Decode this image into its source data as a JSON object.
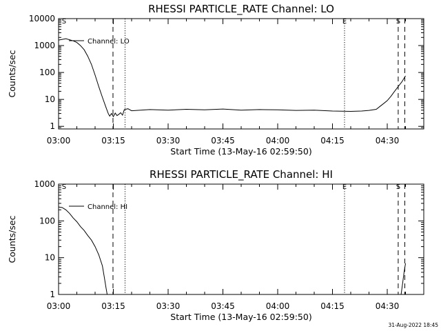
{
  "chart_data": [
    {
      "type": "line",
      "title": "RHESSI PARTICLE_RATE Channel: LO",
      "xlabel": "Start Time (13-May-16 02:59:50)",
      "ylabel": "Counts/sec",
      "x_ticks": [
        "03:00",
        "03:15",
        "03:30",
        "03:45",
        "04:00",
        "04:15",
        "04:30"
      ],
      "y_ticks": [
        "1",
        "10",
        "100",
        "1000",
        "10000"
      ],
      "y_scale": "log",
      "ylim": [
        0.8,
        10000
      ],
      "xlim_minutes": [
        0,
        100
      ],
      "legend": "Channel: LO",
      "series": [
        {
          "name": "Channel: LO",
          "x_minutes": [
            0,
            2,
            4,
            5,
            6,
            7,
            8,
            9,
            10,
            11,
            12,
            13,
            13.6,
            14,
            14.5,
            15,
            15.5,
            16,
            16.5,
            17,
            17.5,
            18,
            19,
            20,
            25,
            30,
            35,
            40,
            45,
            50,
            55,
            60,
            65,
            70,
            75,
            80,
            83,
            85,
            87,
            88,
            89,
            90,
            91,
            92,
            93,
            94,
            95
          ],
          "y_counts": [
            1600,
            1800,
            1500,
            1300,
            1000,
            700,
            400,
            200,
            80,
            30,
            12,
            5,
            3,
            2.4,
            3,
            2.3,
            3.1,
            2.5,
            2.8,
            3.2,
            2.6,
            4.2,
            4.5,
            3.8,
            4.2,
            4.0,
            4.3,
            4.1,
            4.4,
            4.0,
            4.2,
            4.1,
            3.9,
            4.0,
            3.7,
            3.6,
            3.7,
            3.9,
            4.3,
            5.5,
            7,
            9,
            13,
            20,
            30,
            45,
            75
          ]
        }
      ],
      "markers": [
        {
          "label": "S",
          "x_minutes": 1.5,
          "style": "none"
        },
        {
          "label": "",
          "x_minutes": 14.9,
          "style": "dashed"
        },
        {
          "label": "",
          "x_minutes": 18.2,
          "style": "dotted"
        },
        {
          "label": "E",
          "x_minutes": 78.3,
          "style": "dotted"
        },
        {
          "label": "S",
          "x_minutes": 93,
          "style": "dashed"
        },
        {
          "label": "",
          "x_minutes": 94.8,
          "style": "dashed"
        }
      ]
    },
    {
      "type": "line",
      "title": "RHESSI PARTICLE_RATE Channel: HI",
      "xlabel": "Start Time (13-May-16 02:59:50)",
      "ylabel": "Counts/sec",
      "x_ticks": [
        "03:00",
        "03:15",
        "03:30",
        "03:45",
        "04:00",
        "04:15",
        "04:30"
      ],
      "y_ticks": [
        "1",
        "10",
        "100",
        "1000"
      ],
      "y_scale": "log",
      "ylim": [
        1,
        1000
      ],
      "xlim_minutes": [
        0,
        100
      ],
      "legend": "Channel: HI",
      "series": [
        {
          "name": "Channel: HI",
          "x_minutes": [
            0,
            1,
            2,
            3,
            4,
            5,
            6,
            7,
            8,
            9,
            10,
            11,
            12,
            12.5,
            13,
            13.3
          ],
          "y_counts": [
            240,
            230,
            200,
            160,
            120,
            95,
            70,
            55,
            40,
            30,
            20,
            12,
            6,
            3,
            1.5,
            1
          ]
        },
        {
          "name": "Channel: HI",
          "x_minutes": [
            93.8,
            94.2,
            94.6,
            95
          ],
          "y_counts": [
            1,
            2,
            4,
            7
          ]
        }
      ],
      "markers": [
        {
          "label": "S",
          "x_minutes": 1.5,
          "style": "none"
        },
        {
          "label": "",
          "x_minutes": 14.9,
          "style": "dashed"
        },
        {
          "label": "",
          "x_minutes": 18.2,
          "style": "dotted"
        },
        {
          "label": "E",
          "x_minutes": 78.3,
          "style": "dotted"
        },
        {
          "label": "S",
          "x_minutes": 93,
          "style": "dashed"
        },
        {
          "label": "",
          "x_minutes": 94.8,
          "style": "dashed"
        }
      ]
    }
  ],
  "footer": {
    "timestamp": "31-Aug-2022 18:45"
  }
}
